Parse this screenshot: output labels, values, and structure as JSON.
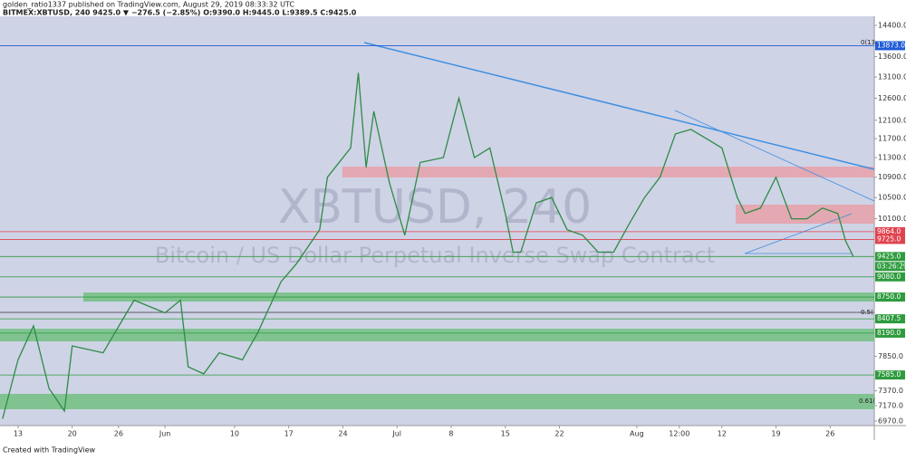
{
  "header": {
    "line1": "golden_ratio1337 published on TradingView.com, August 29, 2019 08:33:32 UTC",
    "line2": "BITMEX:XBTUSD, 240  9425.0 ▼ −276.5 (−2.85%) O:9390.0 H:9445.0 L:9389.5 C:9425.0"
  },
  "watermark": {
    "symbol": "XBTUSD, 240",
    "description": "Bitcoin / US Dollar Perpetual Inverse Swap Contract"
  },
  "fib_labels": [
    "0(13",
    "0.5(",
    "0.61("
  ],
  "footer": "Created with TradingView",
  "chart_data": {
    "type": "line",
    "log_scale": true,
    "color": "#2e8b45",
    "xlim": [
      "2019-05-10T16:00",
      "2019-08-31T17:00"
    ],
    "xticks": [
      {
        "value": "2019-05-13",
        "label": "13"
      },
      {
        "value": "2019-05-20",
        "label": "20"
      },
      {
        "value": "2019-05-26",
        "label": "26"
      },
      {
        "value": "2019-06-01",
        "label": "Jun"
      },
      {
        "value": "2019-06-10",
        "label": "10"
      },
      {
        "value": "2019-06-17",
        "label": "17"
      },
      {
        "value": "2019-06-24",
        "label": "24"
      },
      {
        "value": "2019-07-01",
        "label": "Jul"
      },
      {
        "value": "2019-07-08",
        "label": "8"
      },
      {
        "value": "2019-07-15",
        "label": "15"
      },
      {
        "value": "2019-07-22",
        "label": "22"
      },
      {
        "value": "2019-08-01",
        "label": "Aug"
      },
      {
        "value": "2019-08-06T12:00",
        "label": "12:00"
      },
      {
        "value": "2019-08-12",
        "label": "12"
      },
      {
        "value": "2019-08-19",
        "label": "19"
      },
      {
        "value": "2019-08-26",
        "label": "26"
      }
    ],
    "ylim": [
      6913,
      14641
    ],
    "yticks": [
      {
        "value": 14400,
        "label": "14400.0"
      },
      {
        "value": 13600,
        "label": "13600.0"
      },
      {
        "value": 13100,
        "label": "13100.0"
      },
      {
        "value": 12600,
        "label": "12600.0"
      },
      {
        "value": 12100,
        "label": "12100.0"
      },
      {
        "value": 11700,
        "label": "11700.0"
      },
      {
        "value": 11300,
        "label": "11300.0"
      },
      {
        "value": 10900,
        "label": "10900.0"
      },
      {
        "value": 10500,
        "label": "10500.0"
      },
      {
        "value": 10100,
        "label": "10100.0"
      },
      {
        "value": 7850,
        "label": "7850.0"
      },
      {
        "value": 7370,
        "label": "7370.0"
      },
      {
        "value": 7170,
        "label": "7170.0"
      },
      {
        "value": 6970,
        "label": "6970.0"
      }
    ],
    "x": [
      "2019-05-11",
      "2019-05-13",
      "2019-05-15",
      "2019-05-17",
      "2019-05-19",
      "2019-05-20",
      "2019-05-24",
      "2019-05-28",
      "2019-05-30",
      "2019-06-01",
      "2019-06-03",
      "2019-06-04",
      "2019-06-06",
      "2019-06-08",
      "2019-06-11",
      "2019-06-13",
      "2019-06-16",
      "2019-06-18",
      "2019-06-21",
      "2019-06-22",
      "2019-06-25",
      "2019-06-26",
      "2019-06-27",
      "2019-06-28",
      "2019-06-30",
      "2019-07-02",
      "2019-07-04",
      "2019-07-07",
      "2019-07-09",
      "2019-07-11",
      "2019-07-13",
      "2019-07-15",
      "2019-07-16",
      "2019-07-17",
      "2019-07-19",
      "2019-07-21",
      "2019-07-23",
      "2019-07-25",
      "2019-07-27",
      "2019-07-29",
      "2019-07-31",
      "2019-08-02",
      "2019-08-04",
      "2019-08-06",
      "2019-08-08",
      "2019-08-10",
      "2019-08-12",
      "2019-08-14",
      "2019-08-15",
      "2019-08-17",
      "2019-08-19",
      "2019-08-21",
      "2019-08-23",
      "2019-08-25",
      "2019-08-27",
      "2019-08-28",
      "2019-08-29"
    ],
    "values": [
      7000,
      7800,
      8300,
      7400,
      7100,
      8000,
      7900,
      8700,
      8600,
      8500,
      8700,
      7700,
      7600,
      7900,
      7800,
      8200,
      9000,
      9300,
      9900,
      10900,
      11500,
      13200,
      11100,
      12300,
      10800,
      9800,
      11200,
      11300,
      12600,
      11300,
      11500,
      10200,
      9500,
      9500,
      10400,
      10500,
      9900,
      9800,
      9500,
      9500,
      10000,
      10500,
      10900,
      11800,
      11900,
      11700,
      11500,
      10500,
      10200,
      10300,
      10900,
      10100,
      10100,
      10300,
      10200,
      9700,
      9425
    ],
    "levels": [
      {
        "value": 13873,
        "label": "13873.0",
        "color": "#1e5bd6"
      },
      {
        "value": 9864,
        "label": "9864.0",
        "color": "#e0434f"
      },
      {
        "value": 9725,
        "label": "9725.0",
        "color": "#e0434f"
      },
      {
        "value": 9425,
        "label": "9425.0",
        "color": "#2e9b3e"
      },
      {
        "value": 9080,
        "label": "9080.0",
        "color": "#2e9b3e"
      },
      {
        "value": 8750,
        "label": "8750.0",
        "color": "#2e9b3e"
      },
      {
        "value": 8407.5,
        "label": "8407.5",
        "color": "#2e9b3e"
      },
      {
        "value": 8190,
        "label": "8190.0",
        "color": "#2e9b3e"
      },
      {
        "value": 7585,
        "label": "7585.0",
        "color": "#2e9b3e"
      }
    ],
    "countdown": "03:26:29"
  }
}
